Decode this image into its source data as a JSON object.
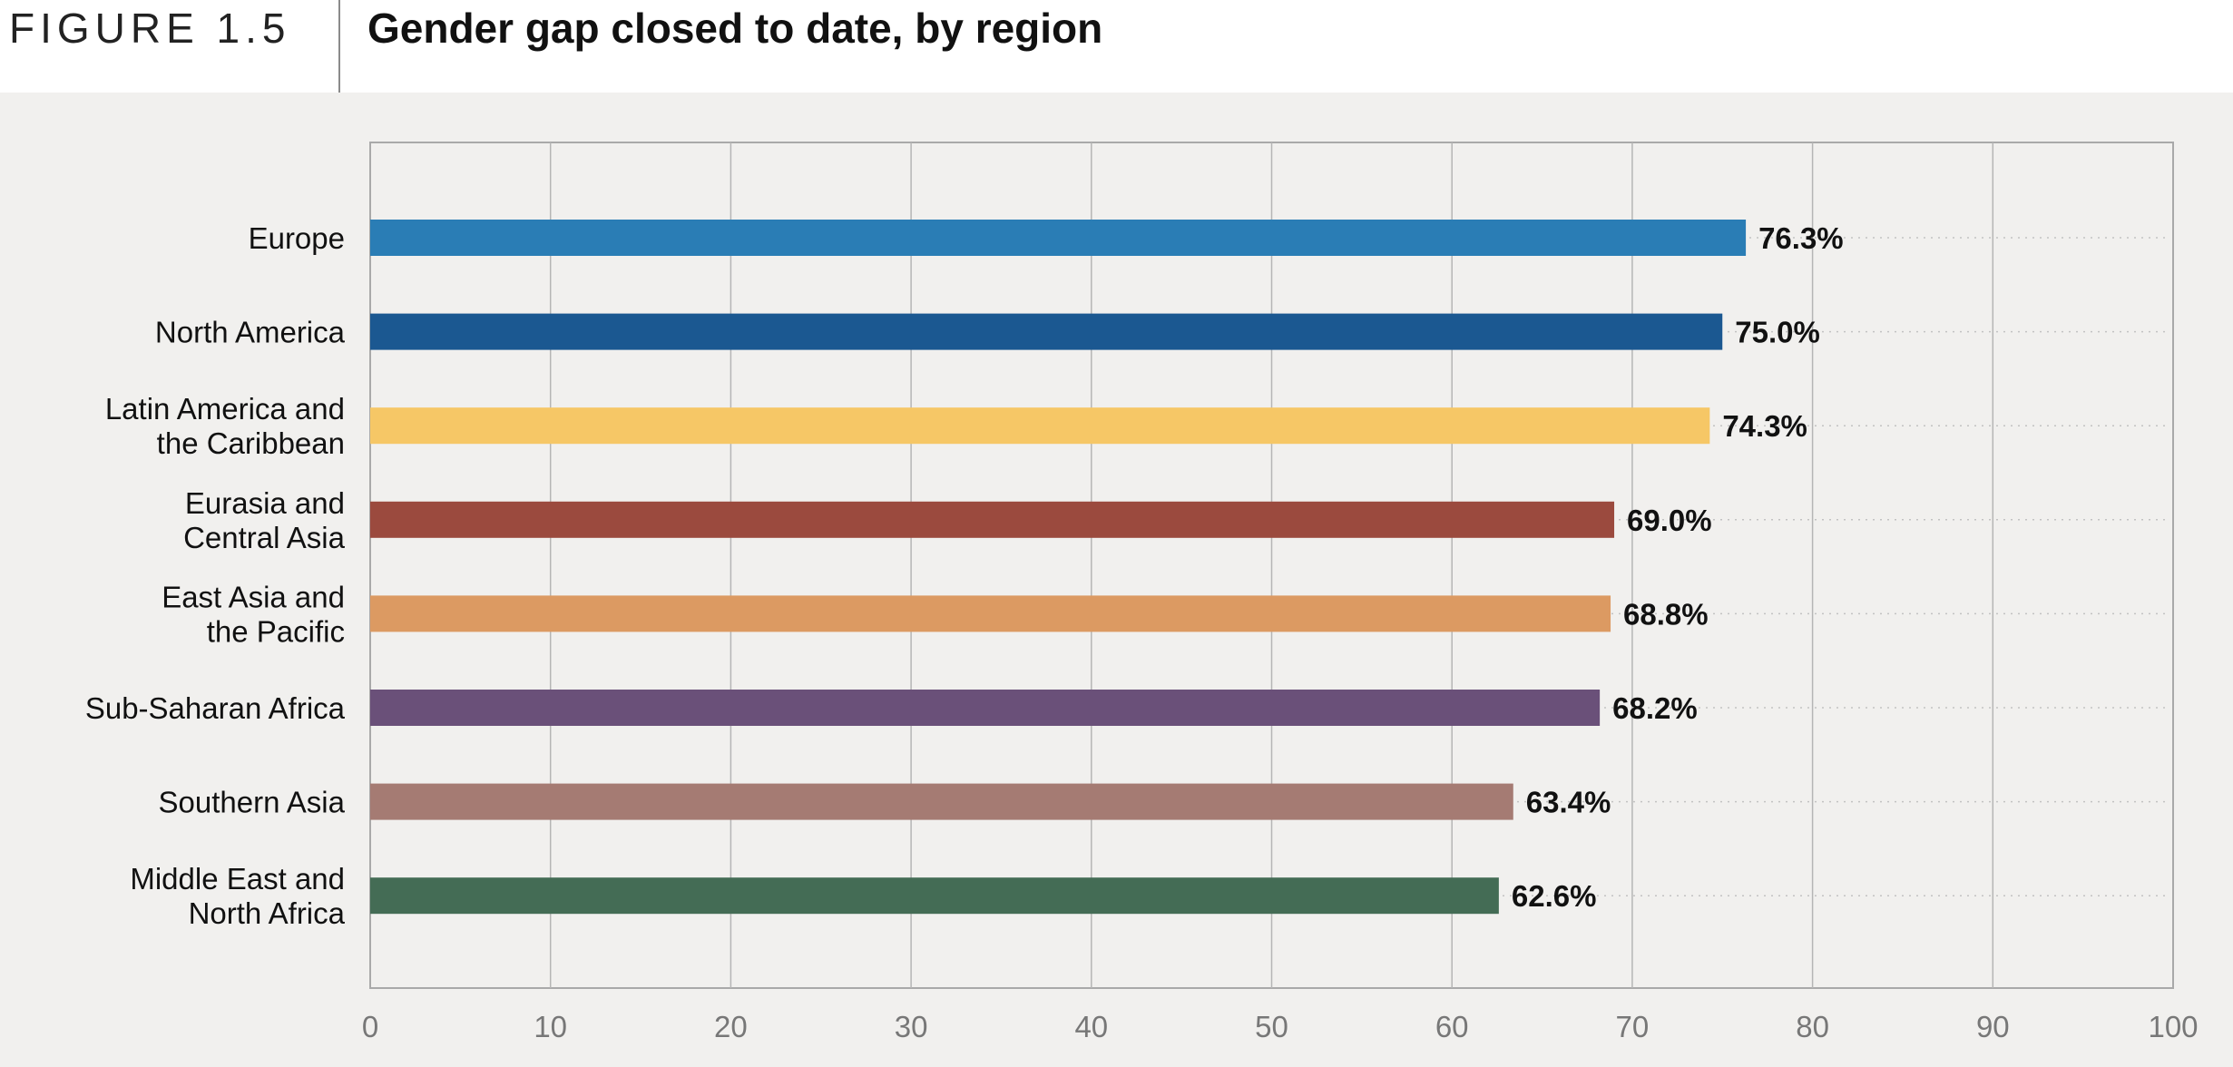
{
  "figure": {
    "label": "FIGURE 1.5",
    "title": "Gender gap closed to date, by region"
  },
  "chart_data": {
    "type": "bar",
    "orientation": "horizontal",
    "title": "Gender gap closed to date, by region",
    "categories": [
      [
        "Europe"
      ],
      [
        "North America"
      ],
      [
        "Latin America and",
        "the Caribbean"
      ],
      [
        "Eurasia and",
        "Central Asia"
      ],
      [
        "East Asia and",
        "the Pacific"
      ],
      [
        "Sub-Saharan Africa"
      ],
      [
        "Southern Asia"
      ],
      [
        "Middle East and",
        "North Africa"
      ]
    ],
    "values": [
      76.3,
      75.0,
      74.3,
      69.0,
      68.8,
      68.2,
      63.4,
      62.6
    ],
    "value_labels": [
      "76.3%",
      "75.0%",
      "74.3%",
      "69.0%",
      "68.8%",
      "68.2%",
      "63.4%",
      "62.6%"
    ],
    "colors": [
      "#2a7db5",
      "#1b5891",
      "#f6c766",
      "#9b4a3e",
      "#dc9a62",
      "#6a5079",
      "#a57b73",
      "#446c55"
    ],
    "xlim": [
      0,
      100
    ],
    "xticks": [
      "0",
      "10",
      "20",
      "30",
      "40",
      "50",
      "60",
      "70",
      "80",
      "90",
      "100"
    ],
    "grid": true
  }
}
